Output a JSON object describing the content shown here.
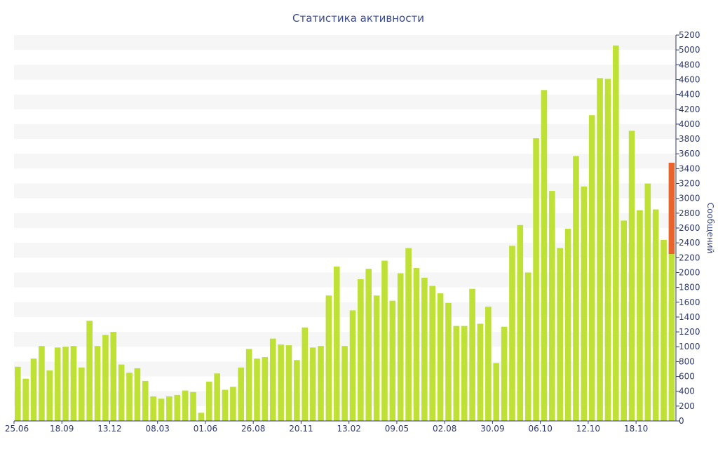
{
  "chart_data": {
    "type": "bar",
    "title": "Статистика активности",
    "ylabel": "Сообщений",
    "xlabel": "",
    "ylim": [
      0,
      5200
    ],
    "ytick_step": 200,
    "grid": "alternating horizontal bands",
    "x_tick_labels": [
      "25.06",
      "18.09",
      "13.12",
      "08.03",
      "01.06",
      "26.08",
      "20.11",
      "13.02",
      "09.05",
      "02.08",
      "30.09",
      "06.10",
      "12.10",
      "18.10"
    ],
    "x_tick_positions": [
      0,
      6,
      12,
      18,
      24,
      30,
      36,
      42,
      48,
      54,
      60,
      66,
      72,
      78
    ],
    "series": [
      {
        "color": "#bfe035",
        "values": [
          730,
          570,
          840,
          1010,
          680,
          990,
          1000,
          1010,
          720,
          1350,
          1010,
          1160,
          1200,
          760,
          650,
          710,
          540,
          330,
          300,
          330,
          350,
          410,
          390,
          110,
          530,
          640,
          420,
          460,
          720,
          970,
          840,
          860,
          1110,
          1030,
          1020,
          820,
          1260,
          990,
          1010,
          1690,
          2080,
          1010,
          1490,
          1910,
          2050,
          1690,
          2160,
          1620,
          1990,
          2330,
          2060,
          1930,
          1820,
          1720,
          1590,
          1280,
          1280,
          1780,
          1310,
          1540,
          780,
          1270,
          2360,
          2640,
          2000,
          3810,
          4460,
          3100,
          2330,
          2590,
          3570,
          3160,
          4120,
          4620,
          4610,
          5060,
          2700,
          3910,
          2840,
          3200,
          2850,
          2440,
          2250
        ]
      },
      {
        "color": "#e8642c",
        "stacked_on_last_bar": true,
        "values": [
          1230
        ]
      }
    ]
  },
  "colors": {
    "bar": "#bfe035",
    "highlight": "#e8642c",
    "band": "#f6f6f6",
    "text": "#3b4a8c",
    "axis": "#2e3a6e"
  }
}
